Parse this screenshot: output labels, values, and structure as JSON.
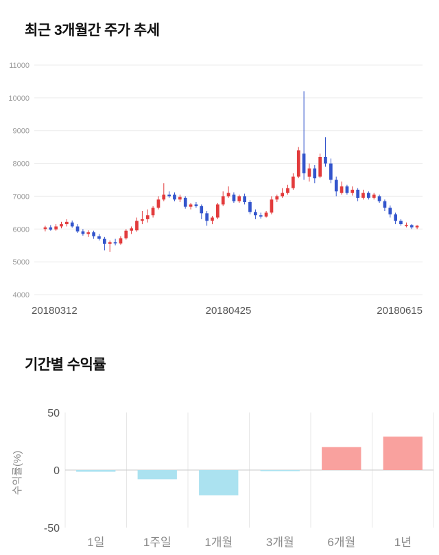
{
  "page": {
    "section1_title": "최근 3개월간 주가 추세",
    "section2_title": "기간별 수익률"
  },
  "chart_data": [
    {
      "type": "candlestick",
      "title": "최근 3개월간 주가 추세",
      "ylim": [
        4000,
        11000
      ],
      "yticks": [
        11000,
        10000,
        9000,
        8000,
        7000,
        6000,
        5000,
        4000
      ],
      "xticks": [
        "20180312",
        "20180425",
        "20180615"
      ],
      "grid": true,
      "colors": {
        "up": "#e23b3c",
        "down": "#3355cc"
      },
      "candles": [
        [
          6000,
          6100,
          5930,
          6050
        ],
        [
          6050,
          6120,
          5950,
          5980
        ],
        [
          5990,
          6150,
          5950,
          6080
        ],
        [
          6080,
          6220,
          6020,
          6150
        ],
        [
          6150,
          6300,
          6080,
          6220
        ],
        [
          6200,
          6260,
          6040,
          6080
        ],
        [
          6080,
          6150,
          5880,
          5930
        ],
        [
          5930,
          6000,
          5800,
          5850
        ],
        [
          5850,
          5960,
          5760,
          5900
        ],
        [
          5900,
          5950,
          5700,
          5780
        ],
        [
          5780,
          5850,
          5650,
          5700
        ],
        [
          5700,
          5760,
          5350,
          5550
        ],
        [
          5550,
          5650,
          5300,
          5600
        ],
        [
          5600,
          5700,
          5500,
          5560
        ],
        [
          5560,
          5780,
          5520,
          5720
        ],
        [
          5720,
          6000,
          5680,
          5950
        ],
        [
          5950,
          6080,
          5850,
          6020
        ],
        [
          5960,
          6350,
          5920,
          6250
        ],
        [
          6250,
          6550,
          6150,
          6300
        ],
        [
          6300,
          6600,
          6200,
          6420
        ],
        [
          6420,
          6700,
          6350,
          6650
        ],
        [
          6650,
          7000,
          6600,
          6900
        ],
        [
          6900,
          7400,
          6850,
          7050
        ],
        [
          7050,
          7150,
          6950,
          7000
        ],
        [
          7050,
          7120,
          6850,
          6900
        ],
        [
          6900,
          7050,
          6820,
          6980
        ],
        [
          6950,
          7000,
          6620,
          6680
        ],
        [
          6680,
          6800,
          6600,
          6750
        ],
        [
          6750,
          6820,
          6650,
          6700
        ],
        [
          6700,
          6750,
          6300,
          6480
        ],
        [
          6480,
          6550,
          6100,
          6250
        ],
        [
          6250,
          6400,
          6150,
          6350
        ],
        [
          6350,
          6800,
          6300,
          6750
        ],
        [
          6750,
          7150,
          6700,
          7000
        ],
        [
          7000,
          7300,
          6950,
          7100
        ],
        [
          7050,
          7120,
          6800,
          6850
        ],
        [
          6850,
          7050,
          6800,
          7000
        ],
        [
          7000,
          7080,
          6750,
          6820
        ],
        [
          6820,
          6880,
          6450,
          6520
        ],
        [
          6520,
          6600,
          6300,
          6420
        ],
        [
          6420,
          6500,
          6320,
          6380
        ],
        [
          6380,
          6550,
          6350,
          6500
        ],
        [
          6500,
          7000,
          6450,
          6900
        ],
        [
          6900,
          7050,
          6820,
          7000
        ],
        [
          7000,
          7250,
          6950,
          7100
        ],
        [
          7100,
          7350,
          7050,
          7250
        ],
        [
          7250,
          7700,
          7200,
          7600
        ],
        [
          7600,
          8500,
          7550,
          8400
        ],
        [
          8300,
          10200,
          7500,
          7700
        ],
        [
          7600,
          8000,
          7450,
          7850
        ],
        [
          7850,
          7950,
          7400,
          7550
        ],
        [
          7600,
          8300,
          7550,
          8200
        ],
        [
          8200,
          8800,
          7900,
          8000
        ],
        [
          8000,
          8150,
          7400,
          7500
        ],
        [
          7500,
          7600,
          7000,
          7150
        ],
        [
          7100,
          7450,
          7050,
          7300
        ],
        [
          7300,
          7350,
          7050,
          7100
        ],
        [
          7100,
          7300,
          7020,
          7200
        ],
        [
          7200,
          7250,
          6850,
          6950
        ],
        [
          6950,
          7200,
          6900,
          7100
        ],
        [
          7100,
          7150,
          6900,
          6950
        ],
        [
          6950,
          7100,
          6900,
          7050
        ],
        [
          7000,
          7050,
          6800,
          6850
        ],
        [
          6850,
          6900,
          6550,
          6650
        ],
        [
          6650,
          6720,
          6350,
          6450
        ],
        [
          6450,
          6500,
          6150,
          6250
        ],
        [
          6250,
          6300,
          6100,
          6150
        ],
        [
          6100,
          6200,
          6050,
          6120
        ],
        [
          6120,
          6150,
          6000,
          6050
        ],
        [
          6050,
          6120,
          6000,
          6100
        ]
      ]
    },
    {
      "type": "bar",
      "title": "기간별 수익률",
      "ylabel": "수익률(%)",
      "categories": [
        "1일",
        "1주일",
        "1개월",
        "3개월",
        "6개월",
        "1년"
      ],
      "values": [
        -1.5,
        -8,
        -22,
        -0.5,
        20,
        29
      ],
      "ylim": [
        -50,
        50
      ],
      "yticks": [
        50,
        0,
        -50
      ],
      "grid": "vertical",
      "colors": {
        "positive": "#f9a19e",
        "negative": "#abe2f0"
      }
    }
  ]
}
